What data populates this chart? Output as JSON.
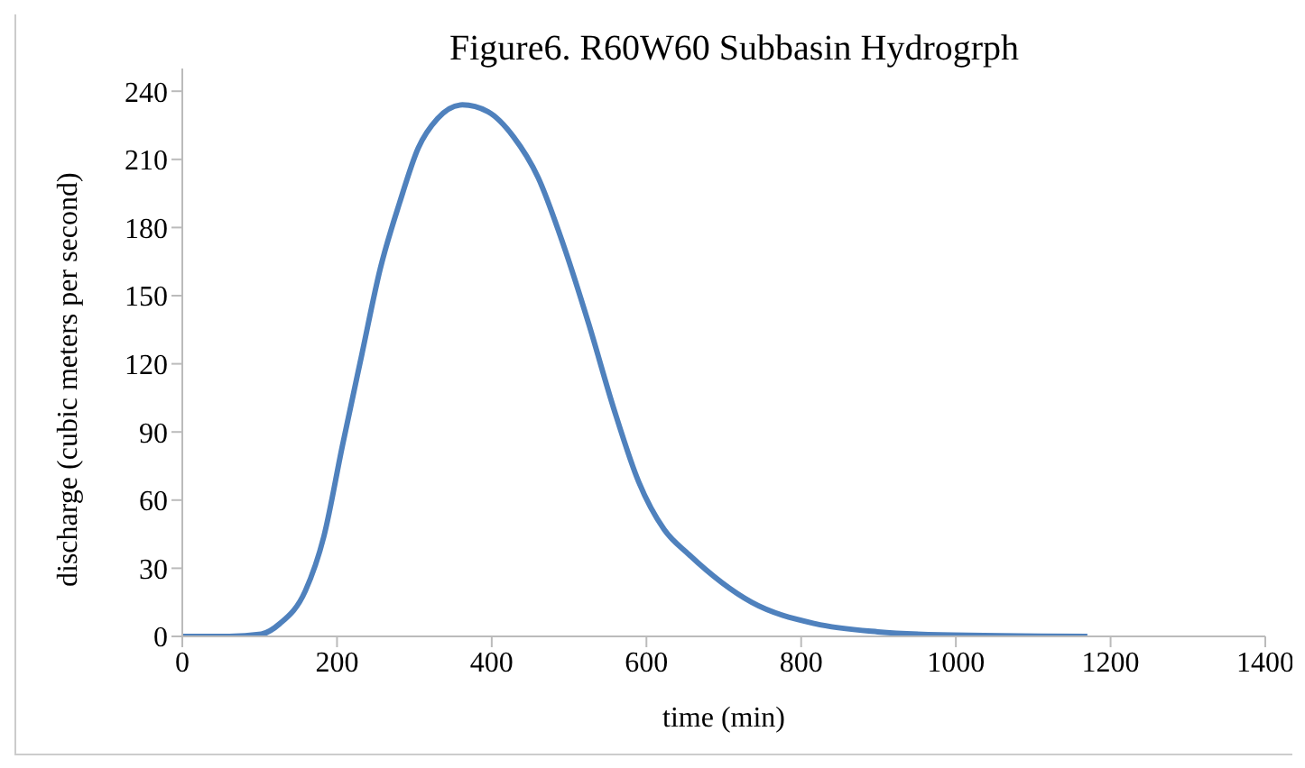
{
  "chart_data": {
    "type": "line",
    "title": "Figure6.  R60W60  Subbasin Hydrogrph",
    "xlabel": "time (min)",
    "ylabel": "discharge (cubic meters per second)",
    "x": [
      0,
      60,
      102,
      126,
      159,
      183,
      207,
      232,
      256,
      281,
      305,
      330,
      362,
      395,
      428,
      460,
      493,
      525,
      558,
      590,
      623,
      655,
      736,
      818,
      899,
      980,
      1170
    ],
    "series": [
      {
        "color": "#4f81bd",
        "values": [
          0,
          0,
          1,
          5.6,
          20,
          44,
          84,
          124,
          162,
          191,
          215,
          228,
          234,
          231,
          220,
          202,
          172,
          138,
          100,
          68,
          47,
          36,
          15,
          5.6,
          2,
          0.7,
          0
        ]
      }
    ],
    "xlim": [
      0,
      1400
    ],
    "xticks": [
      0,
      200,
      400,
      600,
      800,
      1000,
      1200,
      1400
    ],
    "ylim": [
      0,
      250
    ],
    "yticks": [
      0,
      30,
      60,
      90,
      120,
      150,
      180,
      210,
      240
    ],
    "grid": false,
    "legend": false,
    "marker": "none",
    "line_style": "solid"
  }
}
